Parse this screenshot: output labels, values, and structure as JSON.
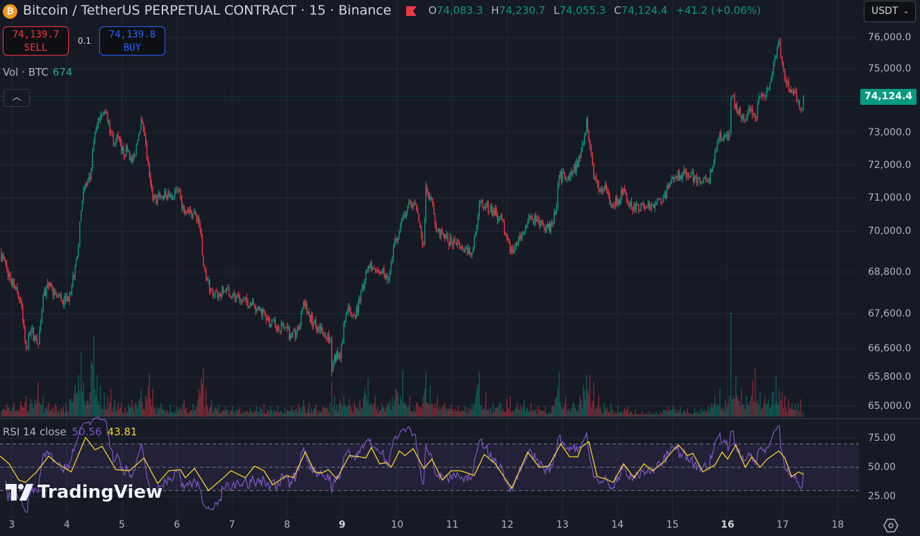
{
  "header": {
    "title": "Bitcoin / TetherUS PERPETUAL CONTRACT · 15 · Binance",
    "ohlc": [
      {
        "key": "O",
        "value": "74,083.3"
      },
      {
        "key": "H",
        "value": "74,230.7"
      },
      {
        "key": "L",
        "value": "74,055.3"
      },
      {
        "key": "C",
        "value": "74,124.4"
      }
    ],
    "change": "+41.2 (+0.06%)",
    "icons": [
      "bitcoin-icon",
      "flag-icon"
    ]
  },
  "trade": {
    "sell_price": "74,139.7",
    "sell_label": "SELL",
    "quantity": "0.1",
    "buy_price": "74,139.8",
    "buy_label": "BUY"
  },
  "volume_legend": {
    "label": "Vol · BTC",
    "value": "674"
  },
  "currency_select": {
    "value": "USDT"
  },
  "last_price_tag": "74,124.4",
  "rsi_legend": {
    "label": "RSI 14 close",
    "rsi": "50.56",
    "ma": "43.81"
  },
  "watermark": "TradingView",
  "colors": {
    "up": "#089981",
    "down": "#f23645",
    "rsi": "#7e57c2",
    "rsi_ma": "#f7d32c",
    "background": "#161a25",
    "grid": "#242936"
  },
  "chart_data": {
    "type": "candlestick",
    "interval": "15",
    "y_scale": "log",
    "grid": true,
    "price_axis_labels": [
      "76,000.0",
      "75,000.0",
      "73,000.0",
      "72,000.0",
      "71,000.0",
      "70,000.0",
      "68,800.0",
      "67,600.0",
      "66,600.0",
      "65,800.0",
      "65,000.0"
    ],
    "price_axis_values": [
      76000,
      75000,
      73000,
      72000,
      71000,
      70000,
      68800,
      67600,
      66600,
      65800,
      65000
    ],
    "time_axis_labels": [
      "3",
      "4",
      "5",
      "6",
      "7",
      "8",
      "9",
      "10",
      "11",
      "12",
      "13",
      "14",
      "15",
      "16",
      "17",
      "18"
    ],
    "time_axis_bold": [
      "9",
      "16"
    ],
    "last_price": 74124.4,
    "series_columns": [
      "day",
      "close",
      "volume"
    ],
    "points": [
      [
        2.79,
        69390,
        1500
      ],
      [
        2.91,
        68880,
        1800
      ],
      [
        3.04,
        68365,
        2000
      ],
      [
        3.16,
        67950,
        2200
      ],
      [
        3.26,
        66620,
        3000
      ],
      [
        3.35,
        67130,
        2500
      ],
      [
        3.48,
        66720,
        5000
      ],
      [
        3.57,
        68160,
        3000
      ],
      [
        3.67,
        68365,
        2000
      ],
      [
        3.79,
        68160,
        1800
      ],
      [
        3.98,
        67950,
        2000
      ],
      [
        4.05,
        68160,
        2500
      ],
      [
        4.15,
        68985,
        4500
      ],
      [
        4.21,
        69590,
        6000
      ],
      [
        4.26,
        70625,
        9300
      ],
      [
        4.3,
        71255,
        5000
      ],
      [
        4.42,
        71575,
        3500
      ],
      [
        4.49,
        72760,
        11700
      ],
      [
        4.55,
        73200,
        6000
      ],
      [
        4.61,
        73530,
        4500
      ],
      [
        4.68,
        73640,
        3500
      ],
      [
        4.74,
        73310,
        3000
      ],
      [
        4.8,
        72980,
        4000
      ],
      [
        4.87,
        72650,
        2500
      ],
      [
        4.93,
        72870,
        2000
      ],
      [
        4.99,
        72430,
        2000
      ],
      [
        5.12,
        72430,
        1800
      ],
      [
        5.18,
        72110,
        2500
      ],
      [
        5.24,
        72330,
        2000
      ],
      [
        5.35,
        73420,
        4000
      ],
      [
        5.43,
        72650,
        3000
      ],
      [
        5.5,
        71680,
        6200
      ],
      [
        5.56,
        70940,
        4000
      ],
      [
        5.71,
        71040,
        2000
      ],
      [
        5.88,
        71085,
        1800
      ],
      [
        6.0,
        71255,
        1500
      ],
      [
        6.13,
        70520,
        2500
      ],
      [
        6.29,
        70520,
        1800
      ],
      [
        6.38,
        70415,
        2500
      ],
      [
        6.44,
        69900,
        5500
      ],
      [
        6.48,
        68985,
        7000
      ],
      [
        6.53,
        68570,
        4000
      ],
      [
        6.63,
        68260,
        2500
      ],
      [
        6.76,
        68160,
        1800
      ],
      [
        6.88,
        68260,
        1500
      ],
      [
        7.01,
        68160,
        1500
      ],
      [
        7.14,
        67950,
        1300
      ],
      [
        7.33,
        67910,
        1200
      ],
      [
        7.45,
        67745,
        1500
      ],
      [
        7.58,
        67640,
        1800
      ],
      [
        7.7,
        67295,
        1500
      ],
      [
        7.83,
        67230,
        1500
      ],
      [
        7.96,
        67210,
        1300
      ],
      [
        8.08,
        66925,
        1500
      ],
      [
        8.21,
        67130,
        1800
      ],
      [
        8.3,
        67950,
        2500
      ],
      [
        8.4,
        67540,
        2000
      ],
      [
        8.52,
        67230,
        1800
      ],
      [
        8.65,
        67030,
        1500
      ],
      [
        8.78,
        66925,
        2000
      ],
      [
        8.81,
        65940,
        5000
      ],
      [
        8.86,
        66420,
        3000
      ],
      [
        8.96,
        66320,
        2500
      ],
      [
        9.03,
        67335,
        3000
      ],
      [
        9.13,
        67745,
        2500
      ],
      [
        9.22,
        67540,
        2000
      ],
      [
        9.32,
        67950,
        2500
      ],
      [
        9.41,
        68570,
        4000
      ],
      [
        9.47,
        68985,
        5500
      ],
      [
        9.6,
        68880,
        3000
      ],
      [
        9.72,
        68780,
        2000
      ],
      [
        9.82,
        68570,
        2000
      ],
      [
        9.91,
        69190,
        3000
      ],
      [
        9.97,
        69790,
        4000
      ],
      [
        10.1,
        70415,
        6700
      ],
      [
        10.23,
        70830,
        3000
      ],
      [
        10.35,
        70625,
        2000
      ],
      [
        10.48,
        69590,
        3000
      ],
      [
        10.52,
        71360,
        6500
      ],
      [
        10.6,
        71040,
        4500
      ],
      [
        10.73,
        70000,
        3000
      ],
      [
        10.86,
        69790,
        2000
      ],
      [
        10.98,
        69690,
        1800
      ],
      [
        11.11,
        69690,
        1500
      ],
      [
        11.23,
        69490,
        1500
      ],
      [
        11.36,
        69390,
        1800
      ],
      [
        11.42,
        70000,
        3000
      ],
      [
        11.49,
        70830,
        6500
      ],
      [
        11.61,
        70725,
        3500
      ],
      [
        11.74,
        70625,
        2000
      ],
      [
        11.86,
        70415,
        2000
      ],
      [
        11.99,
        69790,
        2500
      ],
      [
        12.05,
        69390,
        3000
      ],
      [
        12.18,
        69590,
        2000
      ],
      [
        12.31,
        70000,
        2500
      ],
      [
        12.43,
        70415,
        2000
      ],
      [
        12.56,
        70310,
        1500
      ],
      [
        12.69,
        70000,
        1500
      ],
      [
        12.81,
        70210,
        1500
      ],
      [
        12.87,
        70520,
        2500
      ],
      [
        12.94,
        71680,
        6400
      ],
      [
        13.06,
        71575,
        3000
      ],
      [
        13.19,
        71785,
        2000
      ],
      [
        13.32,
        72220,
        3000
      ],
      [
        13.38,
        72650,
        4500
      ],
      [
        13.44,
        73420,
        6000
      ],
      [
        13.5,
        72540,
        6000
      ],
      [
        13.57,
        71575,
        5000
      ],
      [
        13.66,
        71210,
        3000
      ],
      [
        13.76,
        71300,
        2000
      ],
      [
        13.88,
        70830,
        2000
      ],
      [
        14.01,
        70940,
        1500
      ],
      [
        14.13,
        71255,
        1200
      ],
      [
        14.19,
        70830,
        1500
      ],
      [
        14.32,
        70625,
        1000
      ],
      [
        14.45,
        70790,
        800
      ],
      [
        14.58,
        70710,
        800
      ],
      [
        14.7,
        70790,
        800
      ],
      [
        14.83,
        71000,
        1000
      ],
      [
        14.92,
        71300,
        1500
      ],
      [
        15.02,
        71575,
        1500
      ],
      [
        15.14,
        71680,
        1500
      ],
      [
        15.27,
        71765,
        1200
      ],
      [
        15.4,
        71635,
        1200
      ],
      [
        15.52,
        71470,
        1200
      ],
      [
        15.65,
        71510,
        1500
      ],
      [
        15.71,
        71785,
        2000
      ],
      [
        15.77,
        72430,
        3000
      ],
      [
        15.86,
        72980,
        4000
      ],
      [
        15.96,
        72870,
        2500
      ],
      [
        16.03,
        72980,
        3000
      ],
      [
        16.06,
        74090,
        15000
      ],
      [
        16.15,
        73870,
        6000
      ],
      [
        16.25,
        73420,
        4000
      ],
      [
        16.34,
        73460,
        3000
      ],
      [
        16.43,
        73750,
        3000
      ],
      [
        16.5,
        73460,
        7000
      ],
      [
        16.59,
        74130,
        3500
      ],
      [
        16.68,
        74090,
        3000
      ],
      [
        16.75,
        74355,
        2500
      ],
      [
        16.81,
        74870,
        3500
      ],
      [
        16.88,
        75420,
        6000
      ],
      [
        16.94,
        75870,
        4000
      ],
      [
        16.99,
        75200,
        3500
      ],
      [
        17.04,
        74650,
        3000
      ],
      [
        17.11,
        74355,
        2500
      ],
      [
        17.17,
        74270,
        2000
      ],
      [
        17.23,
        74310,
        1800
      ],
      [
        17.28,
        73980,
        2000
      ],
      [
        17.33,
        73690,
        2500
      ],
      [
        17.38,
        74124.4,
        674
      ]
    ],
    "rsi": {
      "period": 14,
      "axis_labels": [
        "75.00",
        "50.00",
        "25.00"
      ],
      "axis_values": [
        75,
        50,
        25
      ],
      "band": [
        30,
        70
      ],
      "ma_points": [
        [
          2.79,
          59.5
        ],
        [
          2.95,
          53
        ],
        [
          3.13,
          39
        ],
        [
          3.25,
          37
        ],
        [
          3.45,
          46
        ],
        [
          3.67,
          59.5
        ],
        [
          3.83,
          53
        ],
        [
          4.08,
          46
        ],
        [
          4.34,
          75.6
        ],
        [
          4.51,
          65
        ],
        [
          4.64,
          68
        ],
        [
          4.89,
          48
        ],
        [
          5.14,
          47
        ],
        [
          5.4,
          58
        ],
        [
          5.65,
          36
        ],
        [
          5.85,
          47
        ],
        [
          6.06,
          48
        ],
        [
          6.15,
          41
        ],
        [
          6.32,
          49
        ],
        [
          6.57,
          30
        ],
        [
          6.82,
          40
        ],
        [
          6.98,
          47
        ],
        [
          7.24,
          41
        ],
        [
          7.41,
          51
        ],
        [
          7.58,
          47
        ],
        [
          7.74,
          35
        ],
        [
          7.99,
          43
        ],
        [
          8.12,
          41
        ],
        [
          8.21,
          51
        ],
        [
          8.33,
          63
        ],
        [
          8.5,
          46
        ],
        [
          8.62,
          45
        ],
        [
          8.75,
          48
        ],
        [
          8.9,
          40
        ],
        [
          9.13,
          60
        ],
        [
          9.31,
          59
        ],
        [
          9.43,
          58
        ],
        [
          9.53,
          67
        ],
        [
          9.68,
          53
        ],
        [
          9.81,
          54
        ],
        [
          9.89,
          50
        ],
        [
          10.04,
          64
        ],
        [
          10.14,
          60
        ],
        [
          10.29,
          66
        ],
        [
          10.48,
          49
        ],
        [
          10.63,
          57
        ],
        [
          10.82,
          39
        ],
        [
          10.98,
          47
        ],
        [
          11.15,
          47
        ],
        [
          11.4,
          43
        ],
        [
          11.58,
          61
        ],
        [
          11.78,
          53
        ],
        [
          12.08,
          32
        ],
        [
          12.37,
          63
        ],
        [
          12.58,
          50
        ],
        [
          12.75,
          51
        ],
        [
          12.97,
          70
        ],
        [
          13.13,
          59
        ],
        [
          13.28,
          59
        ],
        [
          13.34,
          67
        ],
        [
          13.48,
          72
        ],
        [
          13.63,
          42
        ],
        [
          13.79,
          40
        ],
        [
          13.92,
          37
        ],
        [
          14.11,
          53
        ],
        [
          14.3,
          41
        ],
        [
          14.48,
          53
        ],
        [
          14.64,
          47
        ],
        [
          14.85,
          55
        ],
        [
          14.98,
          63
        ],
        [
          15.11,
          69
        ],
        [
          15.27,
          60
        ],
        [
          15.37,
          62
        ],
        [
          15.55,
          46
        ],
        [
          15.77,
          52
        ],
        [
          15.9,
          63
        ],
        [
          16.0,
          57
        ],
        [
          16.15,
          69
        ],
        [
          16.32,
          50
        ],
        [
          16.44,
          59
        ],
        [
          16.59,
          50
        ],
        [
          16.72,
          57
        ],
        [
          16.93,
          64
        ],
        [
          17.04,
          58
        ],
        [
          17.16,
          42
        ],
        [
          17.29,
          46
        ],
        [
          17.38,
          43.81
        ]
      ],
      "last_rsi": 50.56,
      "last_ma": 43.81
    }
  }
}
